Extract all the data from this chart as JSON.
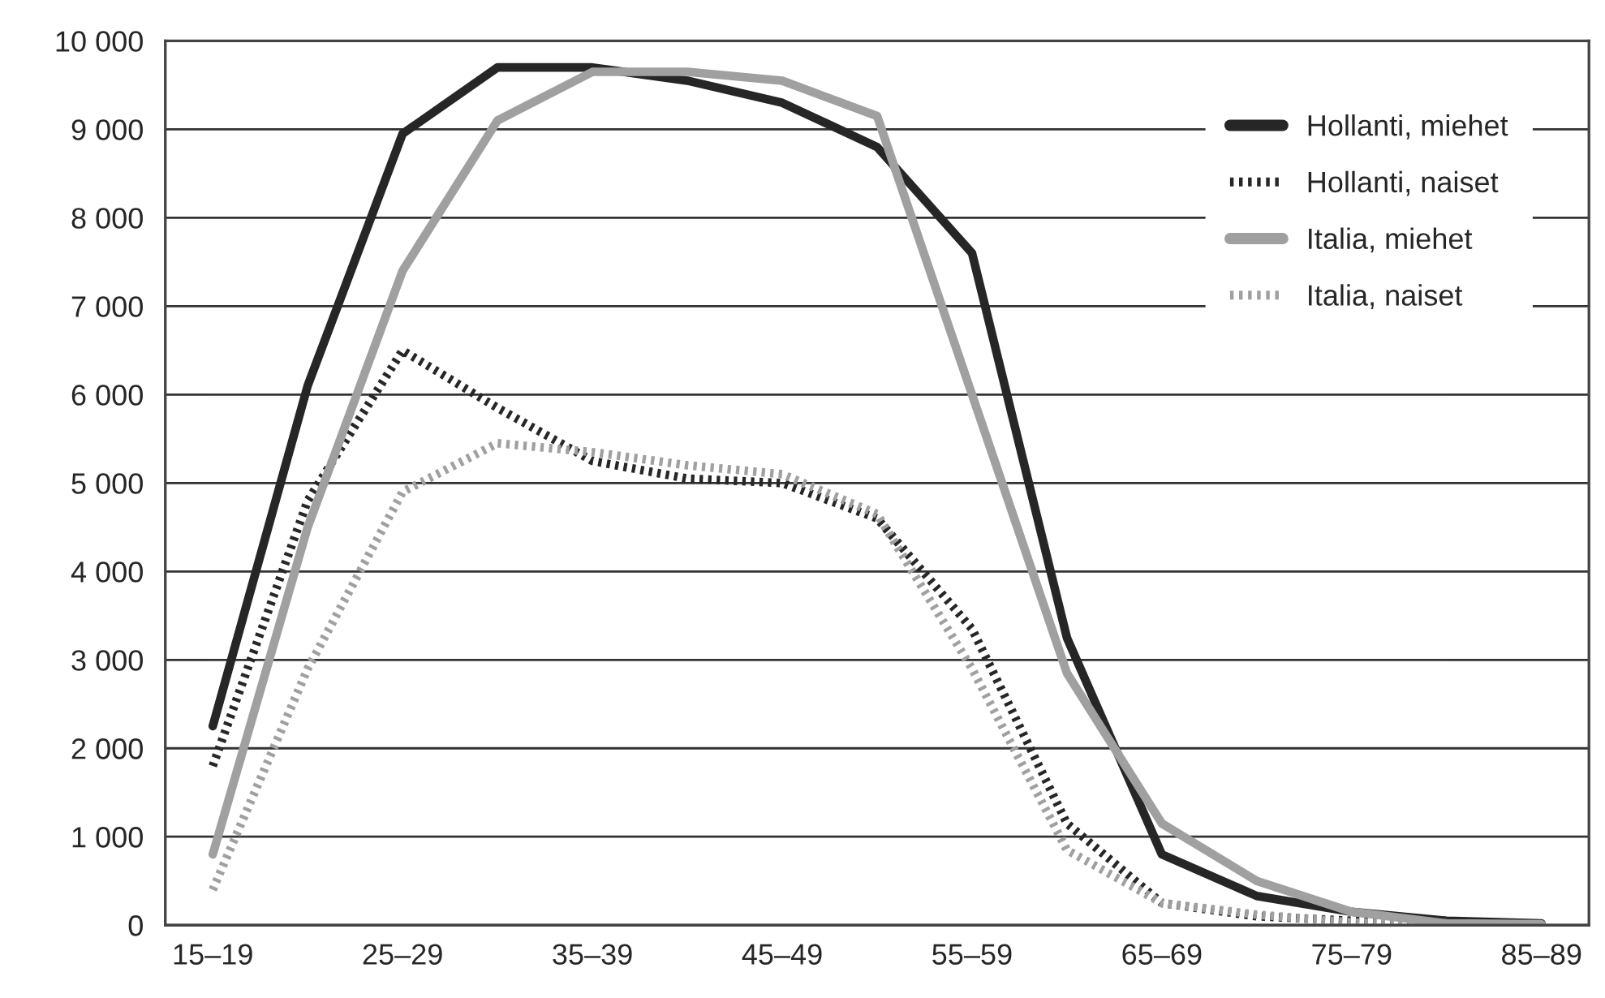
{
  "chart_data": {
    "type": "line",
    "categories": [
      "15–19",
      null,
      "25–29",
      null,
      "35–39",
      null,
      "45–49",
      null,
      "55–59",
      null,
      "65–69",
      null,
      "75–79",
      null,
      "85–89"
    ],
    "series": [
      {
        "name": "Hollanti, miehet",
        "color": "#262626",
        "line_style": "solid",
        "values": [
          2250,
          6100,
          8950,
          9700,
          9700,
          9550,
          9300,
          8800,
          7600,
          3250,
          800,
          330,
          150,
          50,
          20
        ]
      },
      {
        "name": "Hollanti, naiset",
        "color": "#262626",
        "line_style": "dotted",
        "values": [
          1800,
          4800,
          6500,
          5850,
          5250,
          5050,
          5000,
          4600,
          3350,
          1150,
          250,
          100,
          50,
          10,
          5
        ]
      },
      {
        "name": "Italia, miehet",
        "color": "#a0a0a0",
        "line_style": "solid",
        "values": [
          800,
          4500,
          7400,
          9100,
          9650,
          9650,
          9550,
          9150,
          6000,
          2850,
          1150,
          500,
          150,
          20,
          10
        ]
      },
      {
        "name": "Italia, naiset",
        "color": "#a0a0a0",
        "line_style": "dotted",
        "values": [
          400,
          2900,
          4900,
          5450,
          5350,
          5200,
          5100,
          4650,
          2900,
          850,
          250,
          120,
          30,
          5,
          5
        ]
      }
    ],
    "ylim": [
      0,
      10000
    ],
    "yticks": [
      0,
      {
        "value": 1000,
        "label": "1 000"
      },
      {
        "value": 2000,
        "label": "2 000"
      },
      {
        "value": 3000,
        "label": "3 000"
      },
      {
        "value": 4000,
        "label": "4 000"
      },
      {
        "value": 5000,
        "label": "5 000"
      },
      {
        "value": 6000,
        "label": "6 000"
      },
      {
        "value": 7000,
        "label": "7 000"
      },
      {
        "value": 8000,
        "label": "8 000"
      },
      {
        "value": 9000,
        "label": "9 000"
      },
      {
        "value": 10000,
        "label": "10 000"
      }
    ],
    "grid": "y",
    "legend": "top right",
    "marker": "none"
  }
}
